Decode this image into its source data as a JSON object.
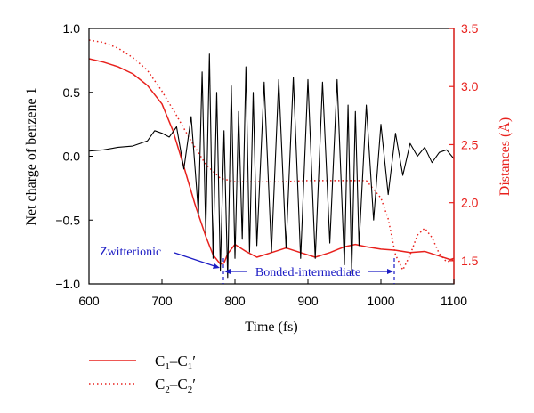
{
  "colors": {
    "left_axis": "#000000",
    "right_axis": "#e8211d",
    "charge_line": "#000000",
    "c1_line": "#e8211d",
    "c2_line": "#e8211d",
    "annotation": "#1c1cc4"
  },
  "chart_data": {
    "type": "line",
    "xlabel": "Time (fs)",
    "ylabel_left": "Net charge of benzene 1",
    "ylabel_right": "Distances (Å)",
    "xlim": [
      600,
      1100
    ],
    "ylim_left": [
      -1.0,
      1.0
    ],
    "ylim_right": [
      1.3,
      3.5
    ],
    "x_ticks": [
      600,
      700,
      800,
      900,
      1000,
      1100
    ],
    "y_left_ticks": [
      -1.0,
      -0.5,
      0.0,
      0.5,
      1.0
    ],
    "y_right_ticks": [
      1.5,
      2.0,
      2.5,
      3.0,
      3.5
    ],
    "y_left_tick_labels": [
      "−1.0",
      "−0.5",
      "0.0",
      "0.5",
      "1.0"
    ],
    "y_right_tick_labels": [
      "1.5",
      "2.0",
      "2.5",
      "3.0",
      "3.5"
    ],
    "x_tick_labels": [
      "600",
      "700",
      "800",
      "900",
      "1000",
      "1100"
    ],
    "grid": false,
    "legend_position": "bottom-left",
    "annotations": [
      {
        "text": "Zwitterionic",
        "x": 780
      },
      {
        "text": "Bonded-intermediate",
        "x_range": [
          783,
          1020
        ]
      }
    ],
    "series": [
      {
        "name": "C1–C1′",
        "axis": "right",
        "style": "solid",
        "x": [
          600,
          620,
          640,
          660,
          680,
          700,
          715,
          730,
          745,
          760,
          770,
          780,
          785,
          790,
          800,
          815,
          830,
          850,
          870,
          890,
          910,
          930,
          950,
          965,
          980,
          1000,
          1020,
          1040,
          1060,
          1080,
          1095,
          1100
        ],
        "y": [
          3.24,
          3.21,
          3.17,
          3.11,
          3.01,
          2.85,
          2.62,
          2.31,
          1.99,
          1.71,
          1.55,
          1.47,
          1.48,
          1.56,
          1.64,
          1.58,
          1.53,
          1.57,
          1.61,
          1.57,
          1.53,
          1.57,
          1.62,
          1.64,
          1.62,
          1.6,
          1.59,
          1.57,
          1.58,
          1.54,
          1.51,
          1.52
        ]
      },
      {
        "name": "C2–C2′",
        "axis": "right",
        "style": "dotted",
        "x": [
          600,
          620,
          640,
          660,
          680,
          700,
          720,
          740,
          760,
          780,
          800,
          830,
          860,
          900,
          940,
          980,
          1000,
          1010,
          1020,
          1030,
          1040,
          1050,
          1060,
          1070,
          1080,
          1090,
          1100
        ],
        "y": [
          3.4,
          3.38,
          3.33,
          3.25,
          3.14,
          2.96,
          2.75,
          2.53,
          2.33,
          2.21,
          2.18,
          2.18,
          2.18,
          2.19,
          2.19,
          2.19,
          2.04,
          1.86,
          1.55,
          1.42,
          1.55,
          1.72,
          1.78,
          1.7,
          1.56,
          1.49,
          1.51
        ]
      },
      {
        "name": "Net charge of benzene 1",
        "axis": "left",
        "style": "solid",
        "x": [
          600,
          620,
          640,
          660,
          680,
          690,
          700,
          710,
          720,
          730,
          740,
          750,
          755,
          760,
          765,
          770,
          775,
          780,
          785,
          790,
          795,
          800,
          805,
          810,
          815,
          820,
          825,
          830,
          840,
          850,
          860,
          870,
          880,
          890,
          900,
          910,
          920,
          930,
          940,
          950,
          955,
          960,
          965,
          970,
          980,
          990,
          1000,
          1010,
          1020,
          1030,
          1040,
          1050,
          1060,
          1070,
          1080,
          1090,
          1100
        ],
        "y": [
          0.04,
          0.05,
          0.07,
          0.08,
          0.12,
          0.2,
          0.18,
          0.15,
          0.23,
          -0.1,
          0.31,
          -0.45,
          0.66,
          -0.6,
          0.8,
          -0.8,
          0.5,
          -0.9,
          0.2,
          -0.95,
          0.55,
          -0.8,
          0.35,
          -0.65,
          0.7,
          -0.75,
          0.5,
          -0.7,
          0.58,
          -0.75,
          0.6,
          -0.72,
          0.62,
          -0.8,
          0.6,
          -0.8,
          0.58,
          -0.68,
          0.6,
          -0.85,
          0.4,
          -0.92,
          0.35,
          -0.7,
          0.4,
          -0.5,
          0.25,
          -0.3,
          0.18,
          -0.15,
          0.1,
          0.0,
          0.07,
          -0.05,
          0.03,
          0.05,
          -0.02
        ]
      }
    ]
  },
  "legend": {
    "items": [
      {
        "main": "C",
        "sub1": "1",
        "mid": "–C",
        "sub2": "1",
        "tail": "′"
      },
      {
        "main": "C",
        "sub1": "2",
        "mid": "–C",
        "sub2": "2",
        "tail": "′"
      }
    ]
  }
}
